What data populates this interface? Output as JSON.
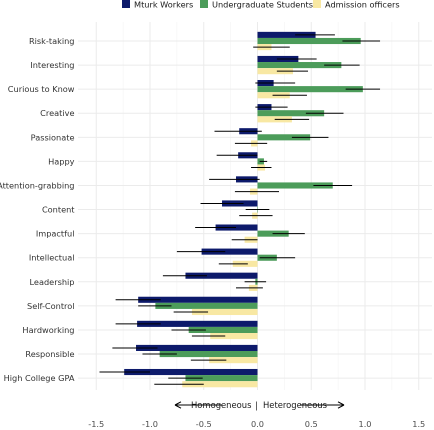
{
  "chart_data": {
    "type": "bar",
    "orientation": "horizontal",
    "grouped": true,
    "legend_position": "top",
    "grid": true,
    "xlim": [
      -1.55,
      1.55
    ],
    "x_ticks": [
      -1.5,
      -1.0,
      -0.5,
      0.0,
      0.5,
      1.0,
      1.5
    ],
    "x_tick_labels": [
      "-1.5",
      "-1.0",
      "-0.5",
      "0.0",
      "0.5",
      "1.0",
      "1.5"
    ],
    "categories": [
      "Risk-taking",
      "Interesting",
      "Curious to Know",
      "Creative",
      "Passionate",
      "Happy",
      "Attention-grabbing",
      "Content",
      "Impactful",
      "Intellectual",
      "Leadership",
      "Self-Control",
      "Hardworking",
      "Responsible",
      "High College GPA"
    ],
    "series": [
      {
        "name": "Mturk Workers",
        "color": "#0d1a6b",
        "values": [
          0.54,
          0.38,
          0.15,
          0.13,
          -0.17,
          -0.18,
          -0.2,
          -0.33,
          -0.39,
          -0.52,
          -0.67,
          -1.11,
          -1.12,
          -1.13,
          -1.24
        ],
        "ci_low": [
          0.35,
          0.18,
          -0.02,
          -0.02,
          -0.4,
          -0.38,
          -0.45,
          -0.53,
          -0.58,
          -0.75,
          -0.88,
          -1.32,
          -1.32,
          -1.35,
          -1.47
        ],
        "ci_high": [
          0.72,
          0.55,
          0.35,
          0.28,
          0.04,
          0.0,
          0.02,
          -0.13,
          -0.2,
          -0.3,
          -0.47,
          -0.9,
          -0.9,
          -0.93,
          -1.0
        ]
      },
      {
        "name": "Undergraduate Students",
        "color": "#4c9c5a",
        "values": [
          0.96,
          0.78,
          0.98,
          0.62,
          0.49,
          0.06,
          0.7,
          0.0,
          0.29,
          0.18,
          -0.02,
          -0.95,
          -0.64,
          -0.91,
          -0.67
        ],
        "ci_low": [
          0.79,
          0.62,
          0.82,
          0.45,
          0.32,
          0.02,
          0.52,
          -0.11,
          0.14,
          0.02,
          -0.12,
          -1.11,
          -0.8,
          -1.07,
          -0.83
        ],
        "ci_high": [
          1.14,
          0.95,
          1.14,
          0.8,
          0.66,
          0.09,
          0.88,
          0.11,
          0.44,
          0.35,
          0.08,
          -0.8,
          -0.48,
          -0.75,
          -0.51
        ]
      },
      {
        "name": "Admission officers",
        "color": "#f8e8a3",
        "values": [
          0.13,
          0.33,
          0.3,
          0.32,
          -0.06,
          0.07,
          -0.07,
          -0.05,
          -0.12,
          -0.23,
          -0.08,
          -0.61,
          -0.44,
          -0.45,
          -0.7
        ],
        "ci_low": [
          -0.04,
          0.18,
          0.14,
          0.16,
          -0.21,
          -0.06,
          -0.21,
          -0.17,
          -0.24,
          -0.36,
          -0.2,
          -0.78,
          -0.61,
          -0.62,
          -0.96
        ],
        "ci_high": [
          0.3,
          0.47,
          0.46,
          0.48,
          0.09,
          0.13,
          0.2,
          0.14,
          0.0,
          -0.09,
          0.05,
          -0.46,
          -0.3,
          -0.29,
          -0.5
        ]
      }
    ],
    "annotation": {
      "left_text": "Homogeneous",
      "right_text": "Heterogeneous",
      "divider": "|"
    }
  }
}
